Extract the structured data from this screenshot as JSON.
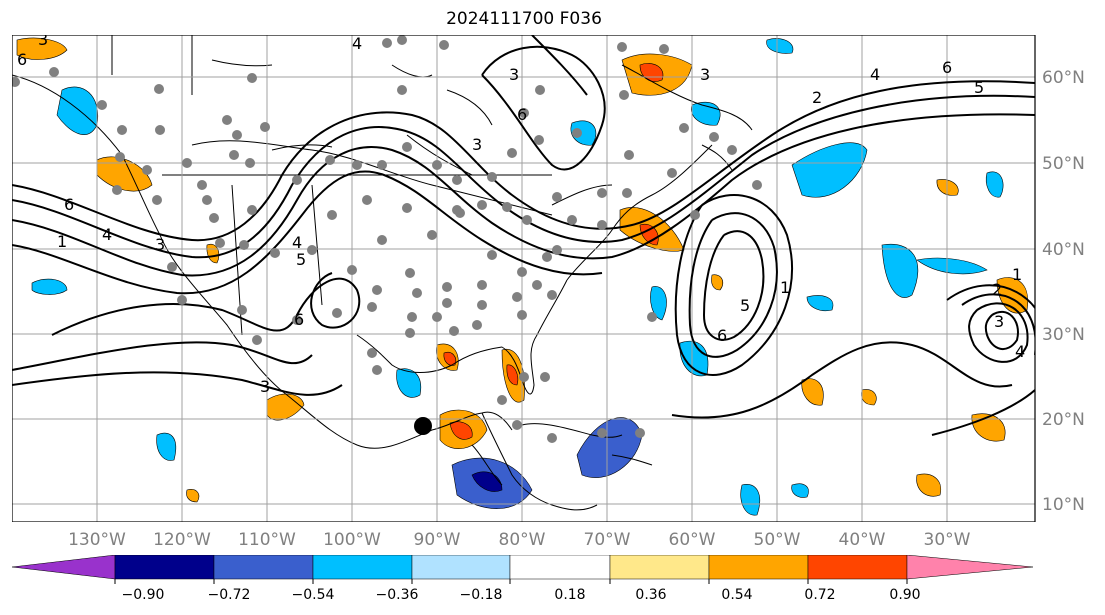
{
  "title": "2024111700 F036",
  "map": {
    "lat_labels": [
      "60°N",
      "50°N",
      "40°N",
      "30°N",
      "20°N",
      "10°N"
    ],
    "lon_labels": [
      "130°W",
      "120°W",
      "110°W",
      "100°W",
      "90°W",
      "80°W",
      "70°W",
      "60°W",
      "50°W",
      "40°W",
      "30°W"
    ],
    "contour_labels": [
      "6",
      "4",
      "3",
      "1",
      "6",
      "4",
      "2",
      "5",
      "3",
      "6",
      "4",
      "1",
      "3",
      "3",
      "6",
      "1",
      "2",
      "3",
      "4",
      "5",
      "6",
      "3",
      "6",
      "5",
      "4",
      "3"
    ],
    "grid_color": "#a0a0a0",
    "coast_color": "#000000"
  },
  "colorbar": {
    "tick_labels": [
      "−0.90",
      "−0.72",
      "−0.54",
      "−0.36",
      "−0.18",
      "0.18",
      "0.36",
      "0.54",
      "0.72",
      "0.90"
    ],
    "colors": [
      "#9932cc",
      "#00008b",
      "#3a5fcd",
      "#00bfff",
      "#b0e2ff",
      "#ffffff",
      "#ffe88a",
      "#ffa500",
      "#ff4500",
      "#b22222",
      "#ff82ab"
    ]
  }
}
